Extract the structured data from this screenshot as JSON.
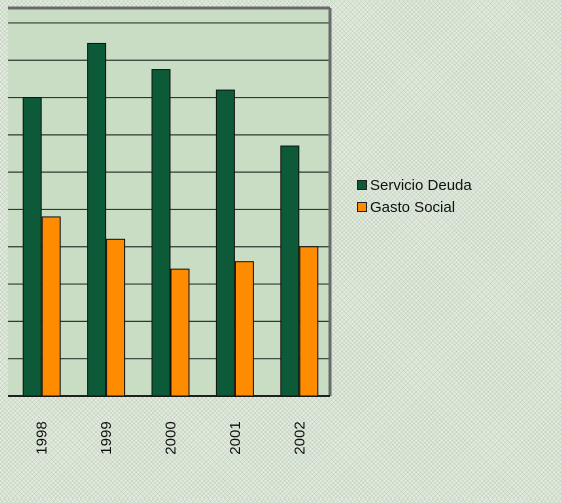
{
  "chart_data": {
    "type": "bar",
    "categories": [
      "1998",
      "1999",
      "2000",
      "2001",
      "2002"
    ],
    "series": [
      {
        "name": "Servicio Deuda",
        "color": "#0d5a38",
        "values": [
          8.0,
          9.45,
          8.75,
          8.2,
          6.7
        ]
      },
      {
        "name": "Gasto Social",
        "color": "#ff8c00",
        "values": [
          4.8,
          4.2,
          3.4,
          3.6,
          4.0
        ]
      }
    ],
    "ylim": [
      0,
      10.4
    ],
    "grid": true,
    "legend": "right",
    "plot_background": "#c9dcc4"
  }
}
